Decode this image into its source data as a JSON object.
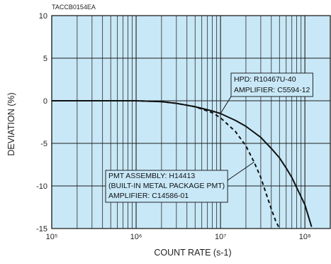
{
  "figure_code": "TACCB0154EA",
  "chart_data": {
    "type": "line",
    "xlabel": "COUNT RATE (s-1)",
    "ylabel": "DEVIATION (%)",
    "xscale": "log",
    "xlim": [
      100000,
      200000000
    ],
    "ylim": [
      -15,
      10
    ],
    "xticks": [
      100000,
      1000000,
      10000000,
      100000000
    ],
    "xtick_labels": [
      "10⁵",
      "10⁶",
      "10⁷",
      "10⁸"
    ],
    "yticks": [
      10,
      5,
      0,
      -5,
      -10,
      -15
    ],
    "grid": true,
    "background_color": "#c8e8f7",
    "series": [
      {
        "style": "solid",
        "color": "#111111",
        "x": [
          100000,
          300000,
          1000000,
          2000000,
          3000000,
          5000000,
          8000000,
          10000000,
          15000000,
          20000000,
          30000000,
          40000000,
          50000000,
          60000000,
          70000000,
          80000000,
          100000000,
          120000000
        ],
        "y": [
          0,
          0,
          0,
          -0.1,
          -0.3,
          -0.7,
          -1.2,
          -1.5,
          -2.3,
          -3.0,
          -4.3,
          -5.6,
          -6.7,
          -7.9,
          -9.0,
          -10.2,
          -12.2,
          -14.8
        ]
      },
      {
        "style": "dashed",
        "color": "#111111",
        "x": [
          100000,
          300000,
          1000000,
          2000000,
          3000000,
          5000000,
          8000000,
          10000000,
          15000000,
          20000000,
          25000000,
          30000000,
          35000000,
          40000000,
          45000000,
          50000000
        ],
        "y": [
          0,
          0,
          0,
          -0.1,
          -0.3,
          -0.7,
          -1.4,
          -2.0,
          -3.6,
          -5.3,
          -7.2,
          -9.0,
          -11.0,
          -12.7,
          -14.1,
          -15.0
        ]
      }
    ],
    "annotations": [
      {
        "lines": [
          "HPD: R10467U-40",
          "AMPLIFIER: C5594-12"
        ],
        "points_to": {
          "x": 10000000,
          "y": -1.5
        }
      },
      {
        "lines": [
          "PMT ASSEMBLY: H14413",
          "(BUILT-IN METAL PACKAGE PMT)",
          "AMPLIFIER: C14586-01"
        ],
        "points_to": {
          "x": 25000000,
          "y": -7.2
        }
      }
    ]
  }
}
